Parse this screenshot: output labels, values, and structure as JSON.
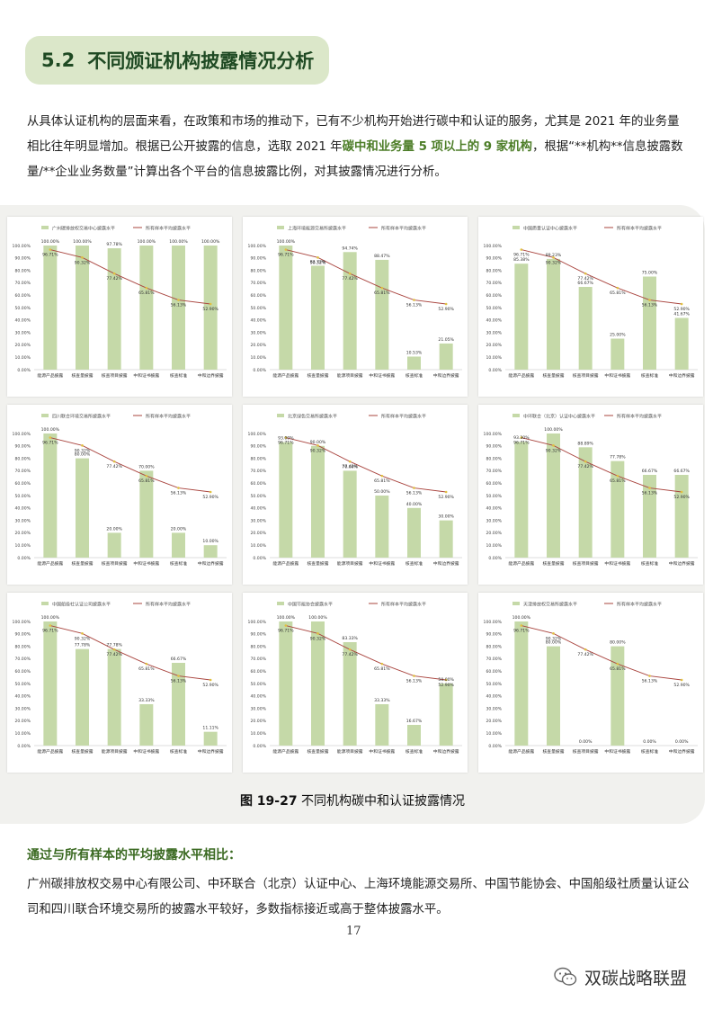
{
  "section": {
    "number": "5.2",
    "title": "不同颁证机构披露情况分析"
  },
  "intro": {
    "part1": "从具体认证机构的层面来看，在政策和市场的推动下，已有不少机构开始进行碳中和认证的服务，尤其是 2021 年的业务量相比往年明显增加。根据已公开披露的信息，选取 2021 年",
    "highlight": "碳中和业务量 5 项以上的 9 家机构",
    "part2": "，根据“**机构**信息披露数量/**企业业务数量”计算出各个平台的信息披露比例，对其披露情况进行分析。"
  },
  "figure_caption": {
    "number": "图 19-27",
    "text": "不同机构碳中和认证披露情况"
  },
  "comparison": {
    "heading": "通过与所有样本的平均披露水平相比：",
    "text": "广州碳排放权交易中心有限公司、中环联合（北京）认证中心、上海环境能源交易所、中国节能协会、中国船级社质量认证公司和四川联合环境交易所的披露水平较好，多数指标接近或高于整体披露水平。"
  },
  "page_number": "17",
  "watermark": {
    "text": "双碳战略联盟",
    "icon": "wechat-icon"
  },
  "colors": {
    "bar": "#c5d9a8",
    "line": "#a9443e",
    "marker": "#e0c040",
    "accent": "#4c7d27"
  },
  "chart_data": [
    {
      "type": "bar",
      "series": [
        {
          "name": "广州碳排放权交易中心披露水平",
          "values": [
            100.0,
            100.0,
            97.78,
            100.0,
            100.0,
            100.0
          ]
        },
        {
          "name": "所有样本平均披露水平",
          "values": [
            96.71,
            90.32,
            77.42,
            65.81,
            56.13,
            52.9
          ]
        }
      ],
      "categories": [
        "能源产品披露",
        "核查量披露",
        "核查项目披露",
        "中和证书披露",
        "核查标准",
        "中和边界披露"
      ],
      "ylim": [
        0,
        100
      ],
      "y_ticks": [
        "0.00%",
        "10.00%",
        "20.00%",
        "30.00%",
        "40.00%",
        "50.00%",
        "60.00%",
        "70.00%",
        "80.00%",
        "90.00%",
        "100.00%"
      ],
      "bar_labels": [
        "100.00%",
        "100.00%",
        "97.78%",
        "100.00%",
        "100.00%",
        "100.00%"
      ],
      "line_labels": [
        "96.71%",
        "90.32%",
        "77.42%",
        "65.81%",
        "56.13%",
        "52.90%"
      ]
    },
    {
      "type": "bar",
      "series": [
        {
          "name": "上海环境能源交易所披露水平",
          "values": [
            100.0,
            83.72,
            94.74,
            88.47,
            10.53,
            21.05
          ]
        },
        {
          "name": "所有样本平均披露水平",
          "values": [
            96.71,
            90.32,
            77.42,
            65.81,
            56.13,
            52.9
          ]
        }
      ],
      "categories": [
        "能源产品披露",
        "核查量披露",
        "能源项目披露",
        "中和证书披露",
        "核查标准",
        "中和边界披露"
      ],
      "ylim": [
        0,
        100
      ],
      "y_ticks": [
        "0.00%",
        "10.00%",
        "20.00%",
        "30.00%",
        "40.00%",
        "50.00%",
        "60.00%",
        "70.00%",
        "80.00%",
        "90.00%",
        "100.00%"
      ],
      "bar_labels": [
        "100.00%",
        "83.72%",
        "94.74%",
        "88.47%",
        "10.53%",
        "21.05%"
      ],
      "line_labels": [
        "96.71%",
        "90.32%",
        "77.42%",
        "65.81%",
        "56.13%",
        "52.90%"
      ]
    },
    {
      "type": "bar",
      "series": [
        {
          "name": "中国质量认证中心披露水平",
          "values": [
            85.38,
            89.23,
            66.67,
            25.0,
            75.0,
            41.67
          ]
        },
        {
          "name": "所有样本平均披露水平",
          "values": [
            96.71,
            90.32,
            77.42,
            65.81,
            56.13,
            52.9
          ]
        }
      ],
      "categories": [
        "能源产品披露",
        "核查量披露",
        "核查项目披露",
        "中和证书披露",
        "核查标准",
        "中和边界披露"
      ],
      "ylim": [
        0,
        100
      ],
      "y_ticks": [
        "0.00%",
        "10.00%",
        "20.00%",
        "30.00%",
        "40.00%",
        "50.00%",
        "60.00%",
        "70.00%",
        "80.00%",
        "90.00%",
        "100.00%"
      ],
      "bar_labels": [
        "85.38%",
        "89.23%",
        "66.67%",
        "25.00%",
        "75.00%",
        "41.67%"
      ],
      "line_labels": [
        "96.71%",
        "90.32%",
        "77.42%",
        "65.81%",
        "56.13%",
        "52.90%"
      ]
    },
    {
      "type": "bar",
      "series": [
        {
          "name": "四川联合环境交易所披露水平",
          "values": [
            100.0,
            80.0,
            20.0,
            70.0,
            20.0,
            10.0
          ]
        },
        {
          "name": "所有样本平均披露水平",
          "values": [
            96.71,
            90.32,
            77.42,
            65.81,
            56.13,
            52.9
          ]
        }
      ],
      "categories": [
        "能源产品披露",
        "核查量披露",
        "核查项目披露",
        "中和证书披露",
        "核查标准",
        "中和边界披露"
      ],
      "ylim": [
        0,
        100
      ],
      "y_ticks": [
        "0.00%",
        "10.00%",
        "20.00%",
        "30.00%",
        "40.00%",
        "50.00%",
        "60.00%",
        "70.00%",
        "80.00%",
        "90.00%",
        "100.00%"
      ],
      "bar_labels": [
        "100.00%",
        "80.00%",
        "20.00%",
        "70.00%",
        "20.00%",
        "10.00%"
      ],
      "line_labels": [
        "96.71%",
        "90.32%",
        "77.42%",
        "65.81%",
        "56.13%",
        "52.90%"
      ]
    },
    {
      "type": "bar",
      "series": [
        {
          "name": "北京绿色交易所披露水平",
          "values": [
            93.0,
            90.0,
            70.0,
            50.0,
            40.0,
            30.0
          ]
        },
        {
          "name": "所有样本平均披露水平",
          "values": [
            96.71,
            90.32,
            77.42,
            65.81,
            56.13,
            52.9
          ]
        }
      ],
      "categories": [
        "能源产品披露",
        "核查量披露",
        "能源项目披露",
        "中和证书披露",
        "核查标准",
        "中和边界披露"
      ],
      "ylim": [
        0,
        100
      ],
      "y_ticks": [
        "0.00%",
        "10.00%",
        "20.00%",
        "30.00%",
        "40.00%",
        "50.00%",
        "60.00%",
        "70.00%",
        "80.00%",
        "90.00%",
        "100.00%"
      ],
      "bar_labels": [
        "93.00%",
        "90.00%",
        "70.00%",
        "50.00%",
        "40.00%",
        "30.00%"
      ],
      "line_labels": [
        "96.71%",
        "90.32%",
        "77.42%",
        "65.81%",
        "56.13%",
        "52.90%"
      ]
    },
    {
      "type": "bar",
      "series": [
        {
          "name": "中环联合（北京）认证中心披露水平",
          "values": [
            93.3,
            100.0,
            88.89,
            77.78,
            66.67,
            66.67
          ]
        },
        {
          "name": "所有样本平均披露水平",
          "values": [
            96.71,
            90.32,
            77.42,
            65.81,
            56.13,
            52.9
          ]
        }
      ],
      "categories": [
        "能源产品披露",
        "核查量披露",
        "核查项目披露",
        "中和证书披露",
        "核查标准",
        "中和边界披露"
      ],
      "ylim": [
        0,
        100
      ],
      "y_ticks": [
        "0.00%",
        "10.00%",
        "20.00%",
        "30.00%",
        "40.00%",
        "50.00%",
        "60.00%",
        "70.00%",
        "80.00%",
        "90.00%",
        "100.00%"
      ],
      "bar_labels": [
        "93.30%",
        "100.00%",
        "88.89%",
        "77.78%",
        "66.67%",
        "66.67%"
      ],
      "line_labels": [
        "96.71%",
        "90.32%",
        "77.42%",
        "65.81%",
        "56.13%",
        "52.90%"
      ]
    },
    {
      "type": "bar",
      "series": [
        {
          "name": "中国船级社认证公司披露水平",
          "values": [
            100.0,
            77.78,
            77.78,
            33.33,
            66.67,
            11.11
          ]
        },
        {
          "name": "所有样本平均披露水平",
          "values": [
            96.71,
            90.32,
            77.42,
            65.81,
            56.13,
            52.9
          ]
        }
      ],
      "categories": [
        "能源产品披露",
        "核查量披露",
        "能源项目披露",
        "中和证书披露",
        "核查标准",
        "中和边界披露"
      ],
      "ylim": [
        0,
        100
      ],
      "y_ticks": [
        "0.00%",
        "10.00%",
        "20.00%",
        "30.00%",
        "40.00%",
        "50.00%",
        "60.00%",
        "70.00%",
        "80.00%",
        "90.00%",
        "100.00%"
      ],
      "bar_labels": [
        "100.00%",
        "77.78%",
        "77.78%",
        "33.33%",
        "66.67%",
        "11.11%"
      ],
      "line_labels": [
        "96.71%",
        "90.32%",
        "77.42%",
        "65.81%",
        "56.13%",
        "52.90%"
      ]
    },
    {
      "type": "bar",
      "series": [
        {
          "name": "中国节能协会披露水平",
          "values": [
            100.0,
            100.0,
            83.33,
            33.33,
            16.67,
            50.0
          ]
        },
        {
          "name": "所有样本平均披露水平",
          "values": [
            96.71,
            90.32,
            77.42,
            65.81,
            56.13,
            52.9
          ]
        }
      ],
      "categories": [
        "能源产品披露",
        "核查量披露",
        "能源项目披露",
        "中和证书披露",
        "核查标准",
        "中和边界披露"
      ],
      "ylim": [
        0,
        100
      ],
      "y_ticks": [
        "0.00%",
        "10.00%",
        "20.00%",
        "30.00%",
        "40.00%",
        "50.00%",
        "60.00%",
        "70.00%",
        "80.00%",
        "90.00%",
        "100.00%"
      ],
      "bar_labels": [
        "100.00%",
        "100.00%",
        "83.33%",
        "33.33%",
        "16.67%",
        "50.00%"
      ],
      "line_labels": [
        "96.71%",
        "90.32%",
        "77.42%",
        "65.81%",
        "56.13%",
        "52.90%"
      ]
    },
    {
      "type": "bar",
      "series": [
        {
          "name": "天津排放权交易所披露水平",
          "values": [
            100.0,
            80.0,
            0.0,
            80.0,
            0.0,
            0.0
          ]
        },
        {
          "name": "所有样本平均披露水平",
          "values": [
            96.71,
            90.32,
            77.42,
            65.81,
            56.13,
            52.9
          ]
        }
      ],
      "categories": [
        "能源产品披露",
        "核查量披露",
        "核查项目披露",
        "中和证书披露",
        "核查标准",
        "中和边界披露"
      ],
      "ylim": [
        0,
        100
      ],
      "y_ticks": [
        "0.00%",
        "10.00%",
        "20.00%",
        "30.00%",
        "40.00%",
        "50.00%",
        "60.00%",
        "70.00%",
        "80.00%",
        "90.00%",
        "100.00%"
      ],
      "bar_labels": [
        "100.00%",
        "80.00%",
        "0.00%",
        "80.00%",
        "0.00%",
        "0.00%"
      ],
      "line_labels": [
        "96.71%",
        "90.32%",
        "77.42%",
        "65.81%",
        "56.13%",
        "52.90%"
      ]
    }
  ]
}
